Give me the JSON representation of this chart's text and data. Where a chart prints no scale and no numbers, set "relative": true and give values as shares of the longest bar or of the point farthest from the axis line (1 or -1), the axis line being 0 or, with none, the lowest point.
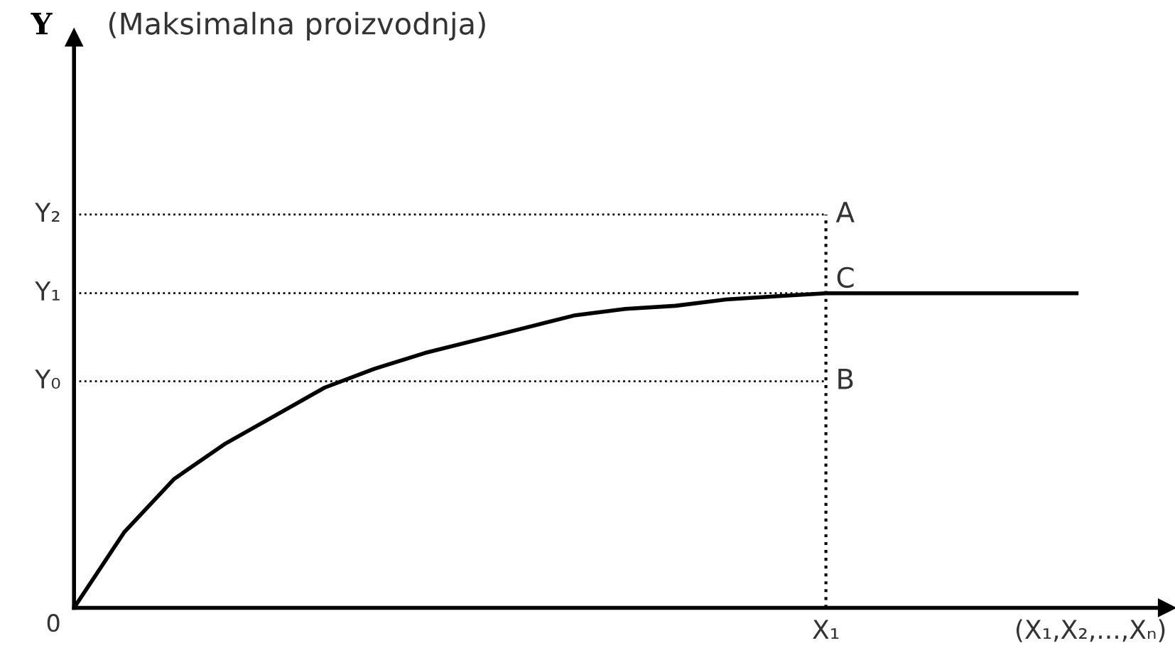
{
  "chart_data": {
    "type": "line",
    "relative": true,
    "title": "(Maksimalna proizvodnja)",
    "xlabel": "(X₁,X₂,...,Xₙ)",
    "categories": [
      null,
      null,
      null,
      null,
      null,
      null,
      null,
      null,
      null,
      null,
      null,
      null,
      null,
      null,
      null,
      null,
      null,
      null,
      null,
      null,
      null
    ],
    "series": [
      {
        "color": "#000000",
        "values": [
          0,
          0.24,
          0.41,
          0.52,
          0.61,
          0.7,
          0.76,
          0.81,
          0.85,
          0.89,
          0.93,
          0.95,
          0.96,
          0.98,
          0.99,
          1.0,
          1.0,
          1.0,
          1.0,
          1.0,
          1.0
        ]
      }
    ],
    "ref_lines": [
      {
        "axis": "y",
        "value": 1.25,
        "label": "Y₂",
        "line_style": "dotted",
        "color": "#000000"
      },
      {
        "axis": "y",
        "value": 1.0,
        "label": "Y₁",
        "line_style": "dotted",
        "color": "#000000"
      },
      {
        "axis": "y",
        "value": 0.72,
        "label": "Y₀",
        "line_style": "dotted",
        "color": "#000000"
      }
    ],
    "annotations": [
      "A",
      "C",
      "B",
      "0",
      "X₁",
      "Y"
    ],
    "grid": false,
    "legend": false,
    "marker": "none",
    "line_style": "solid"
  }
}
